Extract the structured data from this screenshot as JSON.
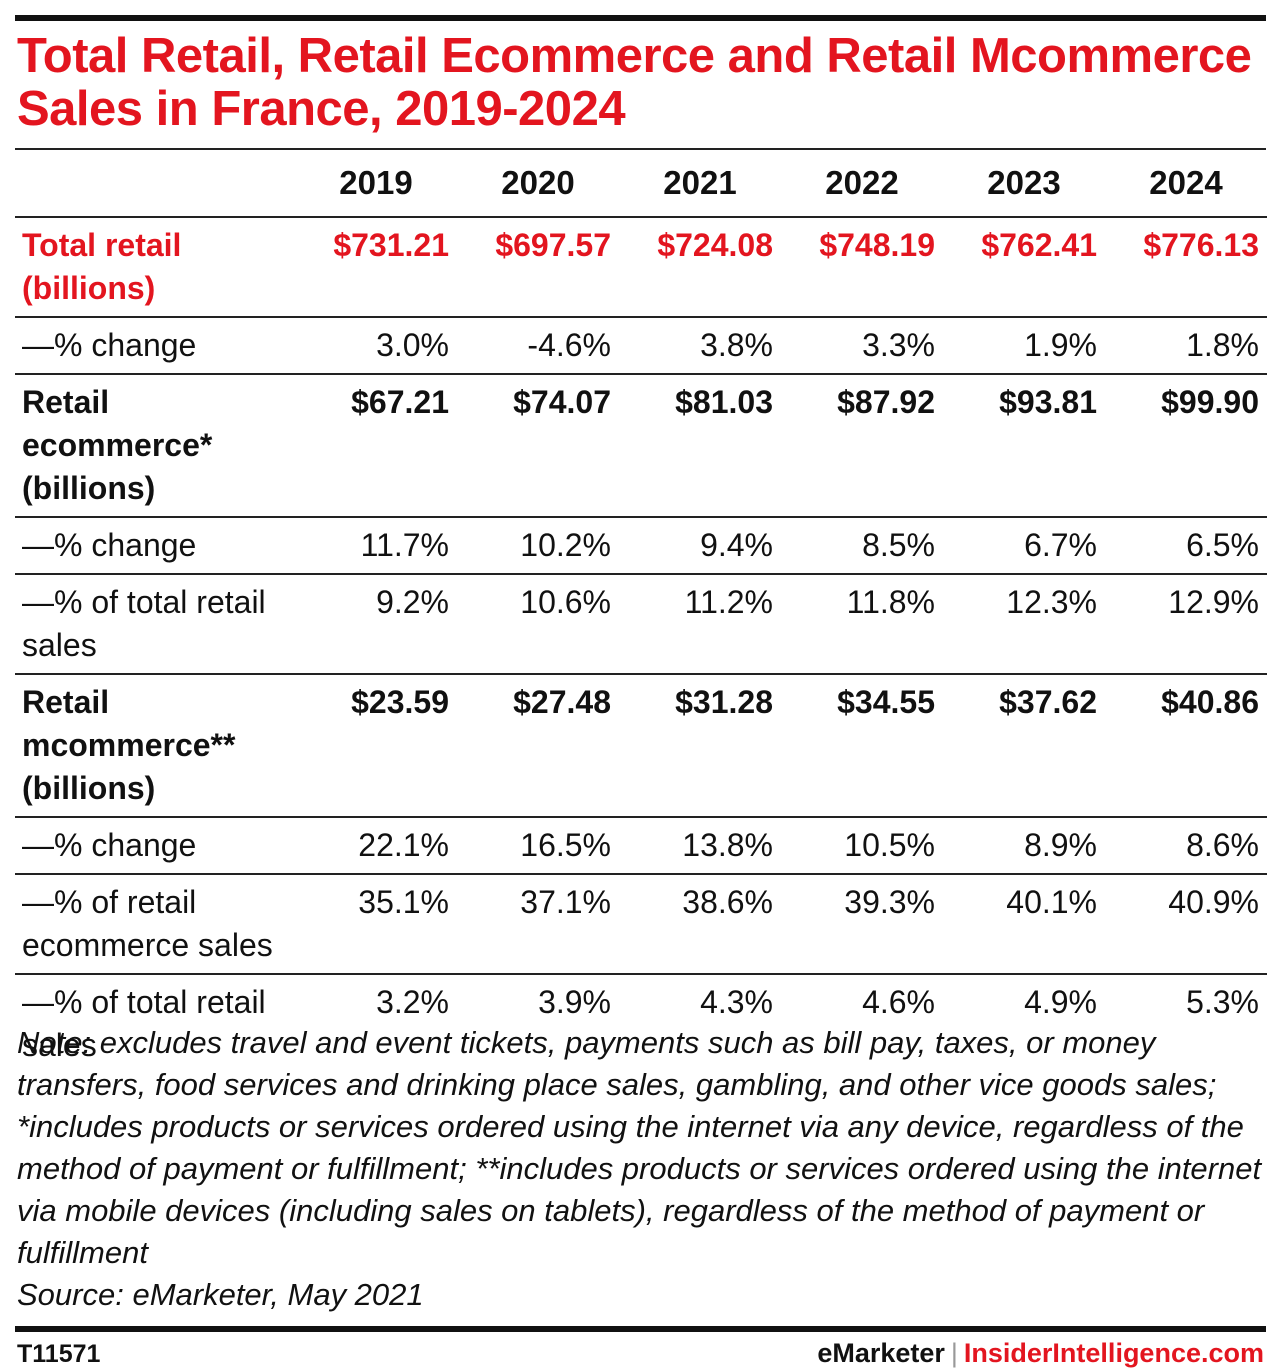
{
  "title": "Total Retail, Retail Ecommerce and Retail Mcommerce Sales in France, 2019-2024",
  "chart_data": {
    "type": "table",
    "title": "Total Retail, Retail Ecommerce and Retail Mcommerce Sales in France, 2019-2024",
    "columns": [
      "2019",
      "2020",
      "2021",
      "2022",
      "2023",
      "2024"
    ],
    "rows": [
      {
        "label": "Total retail (billions)",
        "style": "red",
        "cells": [
          "$731.21",
          "$697.57",
          "$724.08",
          "$748.19",
          "$762.41",
          "$776.13"
        ]
      },
      {
        "label": "—% change",
        "style": "normal",
        "cells": [
          "3.0%",
          "-4.6%",
          "3.8%",
          "3.3%",
          "1.9%",
          "1.8%"
        ]
      },
      {
        "label": "Retail ecommerce* (billions)",
        "style": "bold",
        "cells": [
          "$67.21",
          "$74.07",
          "$81.03",
          "$87.92",
          "$93.81",
          "$99.90"
        ]
      },
      {
        "label": "—% change",
        "style": "normal",
        "cells": [
          "11.7%",
          "10.2%",
          "9.4%",
          "8.5%",
          "6.7%",
          "6.5%"
        ]
      },
      {
        "label": "—% of total retail sales",
        "style": "normal",
        "cells": [
          "9.2%",
          "10.6%",
          "11.2%",
          "11.8%",
          "12.3%",
          "12.9%"
        ]
      },
      {
        "label": "Retail mcommerce** (billions)",
        "style": "bold",
        "cells": [
          "$23.59",
          "$27.48",
          "$31.28",
          "$34.55",
          "$37.62",
          "$40.86"
        ]
      },
      {
        "label": "—% change",
        "style": "normal",
        "cells": [
          "22.1%",
          "16.5%",
          "13.8%",
          "10.5%",
          "8.9%",
          "8.6%"
        ]
      },
      {
        "label": "—% of retail ecommerce sales",
        "style": "normal",
        "cells": [
          "35.1%",
          "37.1%",
          "38.6%",
          "39.3%",
          "40.1%",
          "40.9%"
        ]
      },
      {
        "label": "—% of total retail sales",
        "style": "normal",
        "cells": [
          "3.2%",
          "3.9%",
          "4.3%",
          "4.6%",
          "4.9%",
          "5.3%"
        ]
      }
    ]
  },
  "note": "Note: excludes travel and event tickets, payments such as bill pay, taxes, or money transfers, food services and drinking place sales, gambling, and other vice goods sales; *includes products or services ordered using the internet via any device, regardless of the method of payment or fulfillment; **includes products or services ordered using the internet via mobile devices (including sales on tablets), regardless of the method of payment or fulfillment",
  "source": "Source: eMarketer, May 2021",
  "footer": {
    "chart_id": "T11571",
    "brand": "eMarketer",
    "separator": "|",
    "site": "InsiderIntelligence.com"
  },
  "colors": {
    "accent": "#e3151f",
    "rule": "#222222"
  }
}
